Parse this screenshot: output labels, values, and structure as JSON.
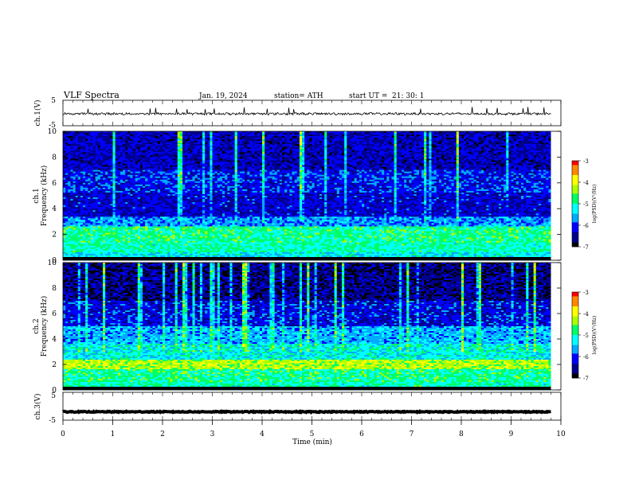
{
  "header": {
    "title": "VLF  Spectra",
    "date": "Jan. 19, 2024",
    "station": "station= ATH",
    "start_label": "start  UT  =",
    "start_time": "21: 30: 1"
  },
  "chart_data": [
    {
      "type": "line",
      "name": "waveform-ch1",
      "ylabel": "ch.1(V)",
      "ylim": [
        -5,
        5
      ],
      "yticks": [
        "5",
        "-5"
      ],
      "xlim": [
        0,
        10
      ],
      "series": [
        {
          "x_start": 0,
          "x_end": 9.8,
          "mean": -0.3,
          "spread": 0.4
        }
      ]
    },
    {
      "type": "heatmap",
      "name": "spectrogram-ch1",
      "ylabel": "Frequency (kHz)",
      "channel_label": "ch.1",
      "ylim": [
        0,
        10
      ],
      "yticks": [
        "0",
        "2",
        "4",
        "6",
        "8",
        "10"
      ],
      "xlim": [
        0,
        9.8
      ],
      "colorbar": {
        "label": "log(PSD)(V²/Hz)",
        "range": [
          -7,
          -3
        ],
        "ticks": [
          "-3",
          "-4",
          "-5",
          "-6",
          "-7"
        ]
      },
      "bands_khz": [
        {
          "from": 0,
          "to": 0.6,
          "level": -5.3
        },
        {
          "from": 0.6,
          "to": 1.4,
          "level": -5.0
        },
        {
          "from": 1.4,
          "to": 2.6,
          "level": -4.9
        },
        {
          "from": 2.6,
          "to": 3.4,
          "level": -5.7
        },
        {
          "from": 3.4,
          "to": 5.2,
          "level": -6.3
        },
        {
          "from": 5.2,
          "to": 7.0,
          "level": -6.1
        },
        {
          "from": 7.0,
          "to": 10,
          "level": -6.4
        }
      ]
    },
    {
      "type": "heatmap",
      "name": "spectrogram-ch2",
      "ylabel": "Frequency (kHz)",
      "channel_label": "ch.2",
      "ylim": [
        0,
        10
      ],
      "yticks": [
        "0",
        "2",
        "4",
        "6",
        "8",
        "10"
      ],
      "xlim": [
        0,
        9.8
      ],
      "colorbar": {
        "label": "log(PSD)(V²/Hz)",
        "range": [
          -7,
          -3
        ],
        "ticks": [
          "-3",
          "-4",
          "-5",
          "-6",
          "-7"
        ]
      },
      "bands_khz": [
        {
          "from": 0,
          "to": 0.6,
          "level": -5.0
        },
        {
          "from": 0.6,
          "to": 1.6,
          "level": -4.9
        },
        {
          "from": 1.6,
          "to": 2.4,
          "level": -4.3
        },
        {
          "from": 2.4,
          "to": 3.6,
          "level": -5.2
        },
        {
          "from": 3.6,
          "to": 5.0,
          "level": -5.6
        },
        {
          "from": 5.0,
          "to": 7.0,
          "level": -6.2
        },
        {
          "from": 7.0,
          "to": 10,
          "level": -6.6
        }
      ]
    },
    {
      "type": "line",
      "name": "waveform-ch3",
      "ylabel": "ch.3(V)",
      "ylim": [
        -5,
        5
      ],
      "yticks": [
        "5",
        "-5"
      ],
      "xlim": [
        0,
        10
      ],
      "xlabel": "Time  (min)",
      "xticks": [
        "0",
        "1",
        "2",
        "3",
        "4",
        "5",
        "6",
        "7",
        "8",
        "9",
        "10"
      ],
      "series": [
        {
          "x_start": 0,
          "x_end": 9.8,
          "mean": -2.0,
          "spread": 0.15
        }
      ]
    }
  ],
  "colors": {
    "colormap": [
      "#000000",
      "#00008b",
      "#0000ff",
      "#00aaff",
      "#00ffff",
      "#00ff66",
      "#aaff00",
      "#ffff00",
      "#ff8800",
      "#ff0000",
      "#ffffff"
    ]
  }
}
